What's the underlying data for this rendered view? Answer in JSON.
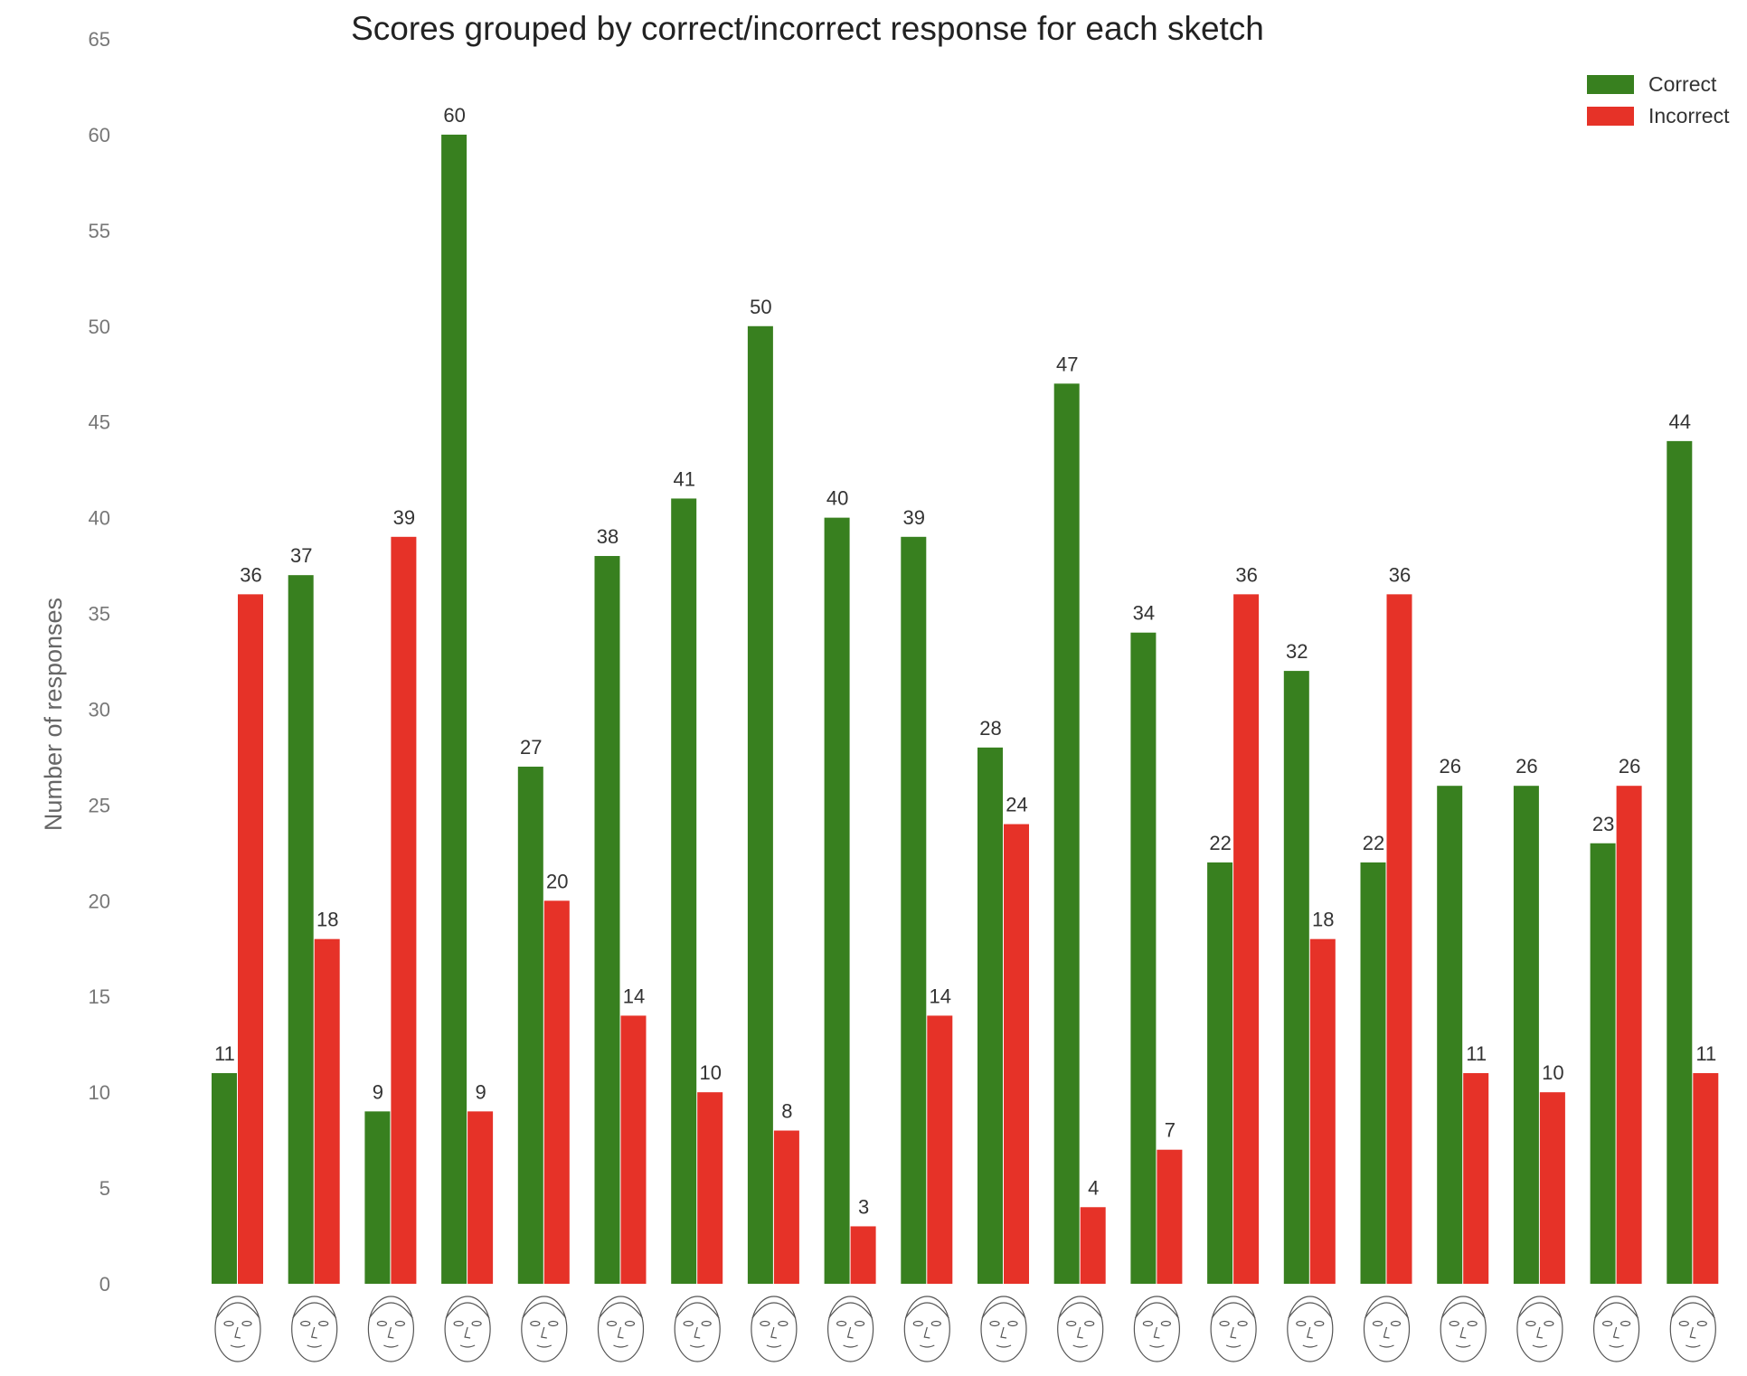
{
  "chart_data": {
    "type": "bar",
    "title": "Scores grouped by correct/incorrect response for each sketch",
    "xlabel": "",
    "ylabel": "Number of responses",
    "ylim": [
      0,
      65
    ],
    "yticks": [
      0,
      5,
      10,
      15,
      20,
      25,
      30,
      35,
      40,
      45,
      50,
      55,
      60,
      65
    ],
    "grid": false,
    "legend_position": "top-right",
    "categories": [
      "",
      "",
      "",
      "",
      "",
      "",
      "",
      "",
      "",
      "",
      "",
      "",
      "",
      "",
      "",
      "",
      "",
      "",
      "",
      ""
    ],
    "category_icons": [
      "face-sketch",
      "face-sketch",
      "face-sketch",
      "face-sketch",
      "face-sketch",
      "face-sketch",
      "face-sketch",
      "face-sketch",
      "face-sketch",
      "face-sketch",
      "face-sketch",
      "face-sketch",
      "face-sketch",
      "face-sketch",
      "face-sketch",
      "face-sketch",
      "face-sketch",
      "face-sketch",
      "face-sketch",
      "face-sketch"
    ],
    "series": [
      {
        "name": "Correct",
        "color": "#38801f",
        "values": [
          11,
          37,
          9,
          60,
          27,
          38,
          41,
          50,
          40,
          39,
          28,
          47,
          34,
          22,
          32,
          22,
          26,
          26,
          23,
          44
        ]
      },
      {
        "name": "Incorrect",
        "color": "#e63228",
        "values": [
          36,
          18,
          39,
          9,
          20,
          14,
          10,
          8,
          3,
          14,
          24,
          4,
          7,
          36,
          18,
          36,
          11,
          10,
          26,
          11
        ]
      }
    ]
  }
}
